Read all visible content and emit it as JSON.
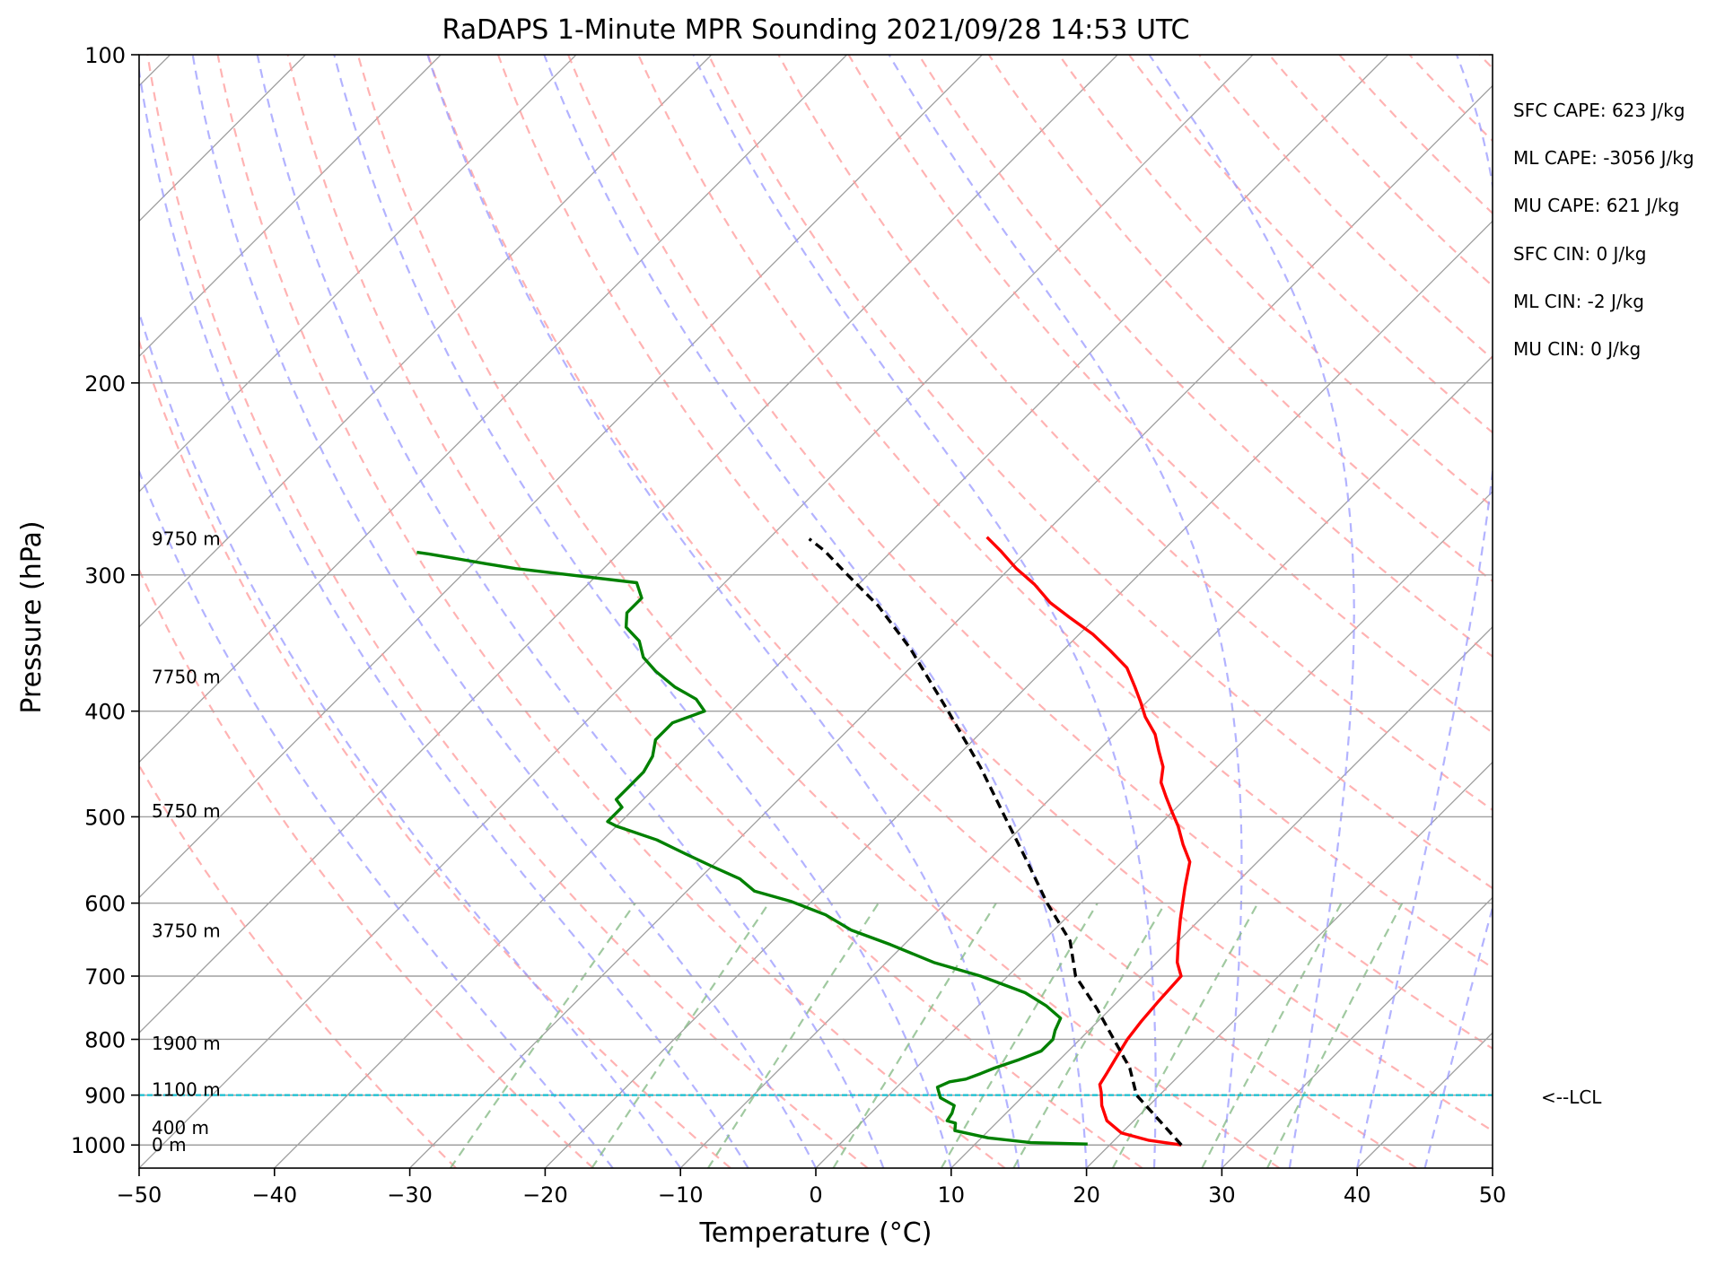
{
  "chart_data": {
    "type": "line",
    "subtype": "skew-T log-P sounding",
    "title": "RaDAPS 1-Minute MPR Sounding 2021/09/28 14:53 UTC",
    "xlabel": "Temperature (°C)",
    "ylabel": "Pressure (hPa)",
    "xlim": [
      -50,
      50
    ],
    "ylim": [
      1050,
      100
    ],
    "y_scale": "log",
    "x_ticks": [
      "−50",
      "−40",
      "−30",
      "−20",
      "−10",
      "0",
      "10",
      "20",
      "30",
      "40",
      "50"
    ],
    "y_ticks": [
      {
        "p": 100,
        "label": "100"
      },
      {
        "p": 200,
        "label": "200"
      },
      {
        "p": 300,
        "label": "300"
      },
      {
        "p": 400,
        "label": "400"
      },
      {
        "p": 500,
        "label": "500"
      },
      {
        "p": 600,
        "label": "600"
      },
      {
        "p": 700,
        "label": "700"
      },
      {
        "p": 800,
        "label": "800"
      },
      {
        "p": 900,
        "label": "900"
      },
      {
        "p": 1000,
        "label": "1000"
      }
    ],
    "grid": true,
    "skew_degrees": 45,
    "series": [
      {
        "role": "temperature",
        "color": "#ff0000",
        "style": "solid",
        "points": [
          [
            25.3,
            1000
          ],
          [
            22.5,
            990
          ],
          [
            20.0,
            975
          ],
          [
            18.0,
            950
          ],
          [
            16.5,
            920
          ],
          [
            15.5,
            895
          ],
          [
            14.8,
            880
          ],
          [
            14.5,
            860
          ],
          [
            14.0,
            830
          ],
          [
            13.5,
            800
          ],
          [
            13.2,
            770
          ],
          [
            13.0,
            740
          ],
          [
            12.8,
            700
          ],
          [
            11.5,
            680
          ],
          [
            10.0,
            650
          ],
          [
            8.5,
            620
          ],
          [
            6.5,
            580
          ],
          [
            5.0,
            550
          ],
          [
            3.2,
            530
          ],
          [
            1.5,
            510
          ],
          [
            0,
            495
          ],
          [
            -1.5,
            480
          ],
          [
            -3,
            465
          ],
          [
            -4,
            450
          ],
          [
            -5.5,
            435
          ],
          [
            -7,
            420
          ],
          [
            -9,
            405
          ],
          [
            -10.5,
            392
          ],
          [
            -12,
            380
          ],
          [
            -14,
            365
          ],
          [
            -16.5,
            352
          ],
          [
            -19,
            340
          ],
          [
            -22,
            328
          ],
          [
            -24.5,
            318
          ],
          [
            -27,
            306
          ],
          [
            -29.5,
            296
          ],
          [
            -32,
            285
          ],
          [
            -34,
            277
          ]
        ]
      },
      {
        "role": "dewpoint",
        "color": "#008000",
        "style": "solid",
        "points": [
          [
            18.3,
            998
          ],
          [
            14.0,
            995
          ],
          [
            10.5,
            985
          ],
          [
            7.5,
            970
          ],
          [
            7.0,
            955
          ],
          [
            6.2,
            950
          ],
          [
            6.0,
            935
          ],
          [
            5.6,
            920
          ],
          [
            4.0,
            905
          ],
          [
            3.0,
            885
          ],
          [
            3.5,
            875
          ],
          [
            4.5,
            870
          ],
          [
            5.2,
            860
          ],
          [
            5.8,
            850
          ],
          [
            7.0,
            835
          ],
          [
            8.0,
            820
          ],
          [
            8.0,
            800
          ],
          [
            7.5,
            785
          ],
          [
            7.0,
            765
          ],
          [
            5.0,
            745
          ],
          [
            2.5,
            725
          ],
          [
            -2.0,
            700
          ],
          [
            -6.5,
            680
          ],
          [
            -11.0,
            655
          ],
          [
            -15.0,
            635
          ],
          [
            -18.0,
            615
          ],
          [
            -21.5,
            598
          ],
          [
            -25.0,
            585
          ],
          [
            -27.0,
            570
          ],
          [
            -30.0,
            555
          ],
          [
            -33.0,
            540
          ],
          [
            -36.0,
            525
          ],
          [
            -40.0,
            510
          ],
          [
            -41.0,
            505
          ],
          [
            -41.0,
            490
          ],
          [
            -42.0,
            482
          ],
          [
            -42.0,
            470
          ],
          [
            -42.0,
            455
          ],
          [
            -42.5,
            440
          ],
          [
            -43.5,
            425
          ],
          [
            -43.5,
            410
          ],
          [
            -42.0,
            400
          ],
          [
            -43.5,
            390
          ],
          [
            -46.0,
            380
          ],
          [
            -48.5,
            368
          ],
          [
            -50.5,
            357
          ],
          [
            -52.0,
            345
          ],
          [
            -54.0,
            335
          ],
          [
            -55.0,
            325
          ],
          [
            -55.0,
            315
          ],
          [
            -56.5,
            305
          ],
          [
            -62.0,
            300
          ],
          [
            -66.5,
            296
          ],
          [
            -69.0,
            293
          ],
          [
            -74.0,
            287
          ],
          [
            -75.0,
            286
          ]
        ]
      },
      {
        "role": "parcel",
        "color": "#000000",
        "style": "dashed",
        "points": [
          [
            25.3,
            1000
          ],
          [
            18.3,
            900
          ],
          [
            15.8,
            850
          ],
          [
            12.5,
            800
          ],
          [
            9.0,
            750
          ],
          [
            5.0,
            700
          ],
          [
            2.0,
            650
          ],
          [
            -2.5,
            600
          ],
          [
            -7.0,
            550
          ],
          [
            -12.0,
            500
          ],
          [
            -17.5,
            450
          ],
          [
            -24.0,
            400
          ],
          [
            -31.5,
            350
          ],
          [
            -37.0,
            320
          ],
          [
            -41.5,
            300
          ],
          [
            -45.0,
            285
          ],
          [
            -47.0,
            278
          ]
        ]
      }
    ],
    "lcl": {
      "pressure": 900,
      "label": "<--LCL",
      "color": "#17becf"
    },
    "height_labels": [
      {
        "p": 1000,
        "label": "0 m"
      },
      {
        "p": 964,
        "label": "400 m"
      },
      {
        "p": 890,
        "label": "1100 m"
      },
      {
        "p": 807,
        "label": "1900 m"
      },
      {
        "p": 636,
        "label": "3750 m"
      },
      {
        "p": 494,
        "label": "5750 m"
      },
      {
        "p": 372,
        "label": "7750 m"
      },
      {
        "p": 278,
        "label": "9750 m"
      }
    ],
    "annotations": [
      "SFC CAPE: 623 J/kg",
      "ML CAPE: -3056 J/kg",
      "MU CAPE: 621 J/kg",
      "SFC CIN: 0 J/kg",
      "ML CIN: -2 J/kg",
      "MU CIN: 0 J/kg"
    ],
    "reference_lines": {
      "dry_adiabats_color": "#ff9999",
      "moist_adiabats_color": "#9999ff",
      "mixing_ratio_color": "#88bb88",
      "isotherm_color": "#a0a0a0"
    }
  }
}
